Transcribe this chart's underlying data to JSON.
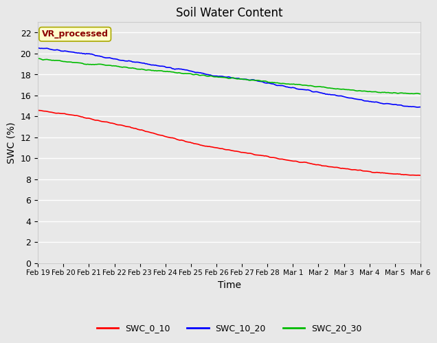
{
  "title": "Soil Water Content",
  "xlabel": "Time",
  "ylabel": "SWC (%)",
  "annotation": "VR_processed",
  "ylim": [
    0,
    23
  ],
  "yticks": [
    0,
    2,
    4,
    6,
    8,
    10,
    12,
    14,
    16,
    18,
    20,
    22
  ],
  "x_labels": [
    "Feb 19",
    "Feb 20",
    "Feb 21",
    "Feb 22",
    "Feb 23",
    "Feb 24",
    "Feb 25",
    "Feb 26",
    "Feb 27",
    "Feb 28",
    "Mar 1",
    "Mar 2",
    "Mar 3",
    "Mar 4",
    "Mar 5",
    "Mar 6"
  ],
  "fig_bg_color": "#e8e8e8",
  "plot_bg_color": "#e8e8e8",
  "grid_color": "#ffffff",
  "line_colors": {
    "SWC_0_10": "#ff0000",
    "SWC_10_20": "#0000ff",
    "SWC_20_30": "#00bb00"
  },
  "legend_labels": [
    "SWC_0_10",
    "SWC_10_20",
    "SWC_20_30"
  ],
  "swc_0_10": [
    14.58,
    14.42,
    14.28,
    14.1,
    13.85,
    13.58,
    13.35,
    13.08,
    12.82,
    12.5,
    12.2,
    11.9,
    11.6,
    11.32,
    11.1,
    10.9,
    10.68,
    10.48,
    10.28,
    10.08,
    9.88,
    9.68,
    9.5,
    9.32,
    9.15,
    9.0,
    8.85,
    8.72,
    8.6,
    8.5,
    8.42,
    8.35
  ],
  "swc_10_20": [
    20.55,
    20.45,
    20.35,
    20.22,
    20.1,
    20.0,
    19.88,
    19.72,
    19.55,
    19.4,
    19.28,
    19.15,
    19.0,
    18.88,
    18.72,
    18.6,
    18.48,
    18.3,
    18.1,
    17.95,
    17.82,
    17.72,
    17.62,
    17.5,
    17.38,
    17.22,
    17.05,
    16.88,
    16.72,
    16.58,
    16.42,
    16.28,
    16.1,
    15.95,
    15.8,
    15.65,
    15.5,
    15.38,
    15.25,
    15.15,
    15.05,
    14.95,
    14.88
  ],
  "swc_20_30": [
    19.52,
    19.42,
    19.35,
    19.25,
    19.15,
    19.05,
    18.98,
    18.92,
    18.85,
    18.75,
    18.65,
    18.55,
    18.45,
    18.38,
    18.3,
    18.22,
    18.12,
    18.02,
    17.92,
    17.82,
    17.75,
    17.68,
    17.6,
    17.52,
    17.42,
    17.32,
    17.22,
    17.15,
    17.08,
    17.0,
    16.92,
    16.82,
    16.72,
    16.62,
    16.55,
    16.48,
    16.42,
    16.35,
    16.3,
    16.25,
    16.22,
    16.18,
    16.15
  ],
  "noise_seed": 42
}
